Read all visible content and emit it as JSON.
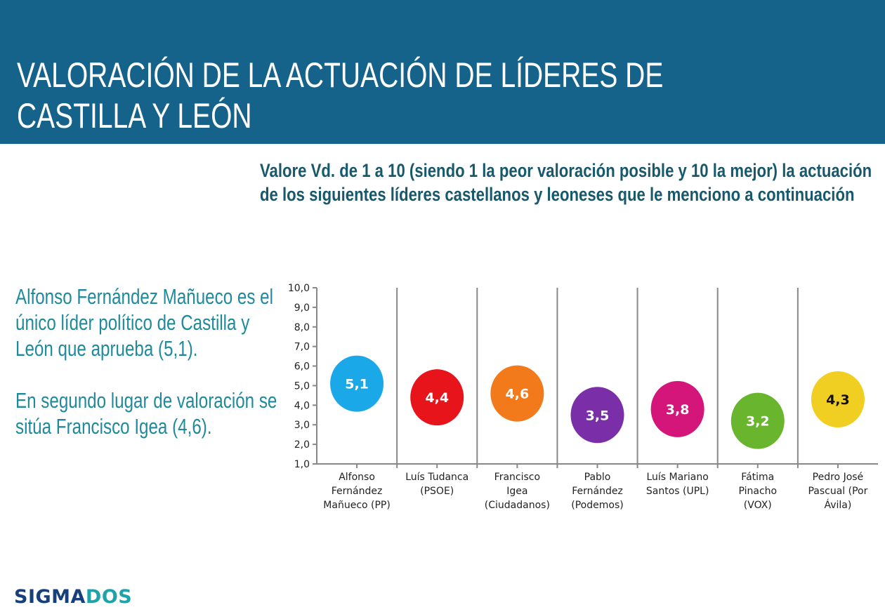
{
  "header": {
    "title": "VALORACIÓN DE LA ACTUACIÓN DE LÍDERES DE CASTILLA Y LEÓN"
  },
  "question": "Valore Vd. de 1 a 10 (siendo 1 la peor valoración posible y 10 la mejor) la actuación de los siguientes líderes castellanos y leoneses que le menciono a continuación",
  "notes": [
    "Alfonso Fernández Mañueco es el único líder político de Castilla y León que aprueba (5,1).",
    "En segundo lugar de valoración se sitúa Francisco Igea (4,6)."
  ],
  "logo": {
    "part1": "SIGMA",
    "part2": "DOS",
    "color1": "#173f7a",
    "color2": "#1ea3ab"
  },
  "colors": {
    "banner": "#15628a"
  },
  "chart_data": {
    "type": "scatter",
    "categories": [
      [
        "Alfonso",
        "Fernández",
        "Mañueco (PP)"
      ],
      [
        "Luís Tudanca",
        "(PSOE)"
      ],
      [
        "Francisco",
        "Igea",
        "(Ciudadanos)"
      ],
      [
        "Pablo",
        "Fernández",
        "(Podemos)"
      ],
      [
        "Luís Mariano",
        "Santos (UPL)"
      ],
      [
        "Fátima",
        "Pinacho",
        "(VOX)"
      ],
      [
        "Pedro José",
        "Pascual (Por",
        "Ávila)"
      ]
    ],
    "values": [
      5.1,
      4.4,
      4.6,
      3.5,
      3.8,
      3.2,
      4.3
    ],
    "data_labels": [
      "5,1",
      "4,4",
      "4,6",
      "3,5",
      "3,8",
      "3,2",
      "4,3"
    ],
    "point_colors": [
      "#1aa8e8",
      "#e8141c",
      "#f27a1a",
      "#7a2fa8",
      "#d4157a",
      "#6ab52e",
      "#f0cf22"
    ],
    "label_colors": [
      "#fff",
      "#fff",
      "#fff",
      "#fff",
      "#fff",
      "#fff",
      "#111"
    ],
    "ylim": [
      1,
      10
    ],
    "yticks": [
      "1,0",
      "2,0",
      "3,0",
      "4,0",
      "5,0",
      "6,0",
      "7,0",
      "8,0",
      "9,0",
      "10,0"
    ],
    "grid": "vertical separators between categories"
  }
}
